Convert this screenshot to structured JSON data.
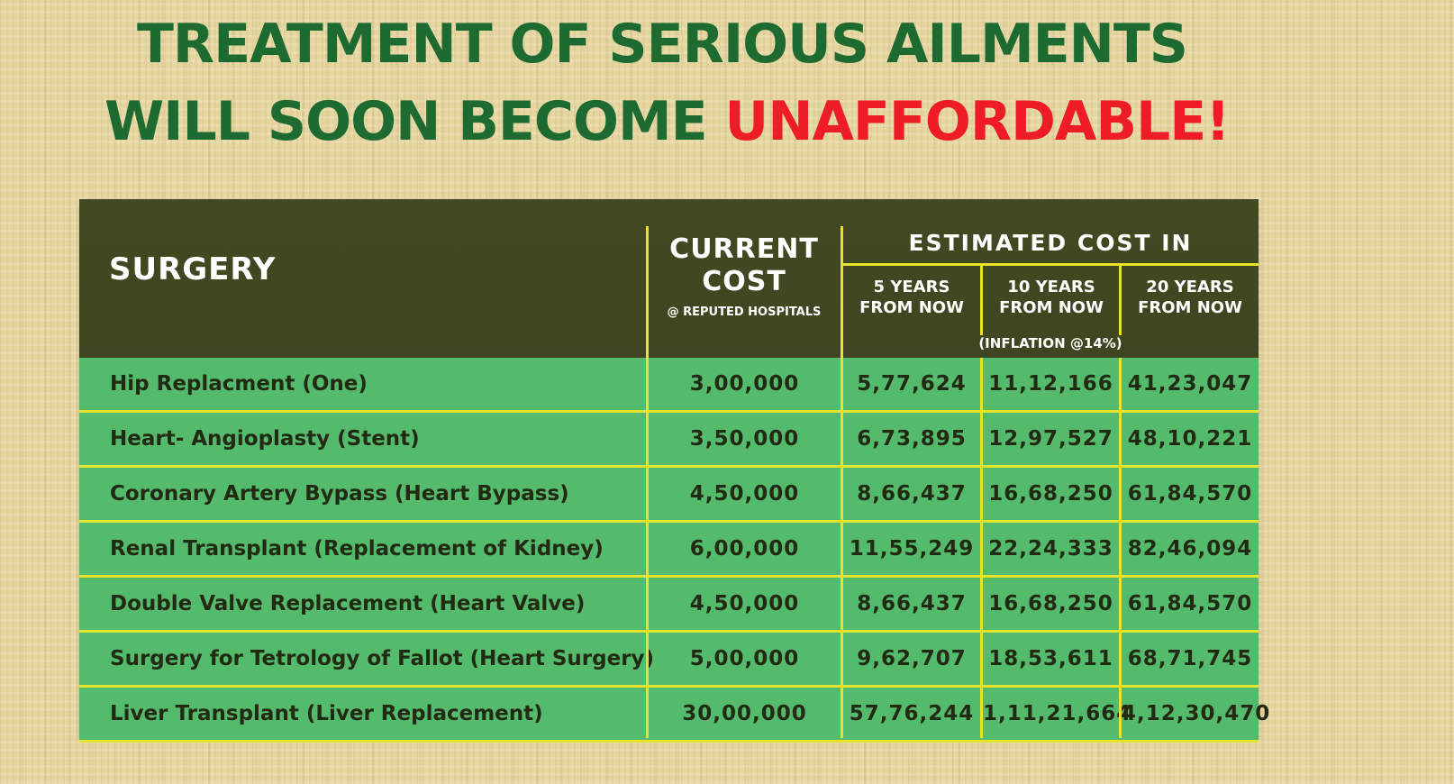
{
  "title": {
    "line1": "TREATMENT OF SERIOUS AILMENTS",
    "line2_prefix": "WILL SOON BECOME ",
    "line2_highlight": "UNAFFORDABLE!"
  },
  "colors": {
    "title_green": "#1e6b32",
    "highlight_red": "#ee1c24",
    "header_bg": "#404820",
    "row_green": "#54bb6d",
    "grid_yellow": "#e5e32a"
  },
  "table": {
    "headers": {
      "surgery": "SURGERY",
      "current_line1": "CURRENT",
      "current_line2": "COST",
      "current_sub": "@ REPUTED HOSPITALS",
      "estimated": "ESTIMATED COST IN",
      "y5_line1": "5 YEARS",
      "y5_line2": "FROM NOW",
      "y10_line1": "10 YEARS",
      "y10_line2": "FROM NOW",
      "y20_line1": "20 YEARS",
      "y20_line2": "FROM NOW",
      "inflation": "(INFLATION @14%)"
    },
    "rows": [
      {
        "surgery": "Hip Replacment (One)",
        "current": "3,00,000",
        "y5": "5,77,624",
        "y10": "11,12,166",
        "y20": "41,23,047"
      },
      {
        "surgery": "Heart- Angioplasty (Stent)",
        "current": "3,50,000",
        "y5": "6,73,895",
        "y10": "12,97,527",
        "y20": "48,10,221"
      },
      {
        "surgery": "Coronary Artery Bypass (Heart Bypass)",
        "current": "4,50,000",
        "y5": "8,66,437",
        "y10": "16,68,250",
        "y20": "61,84,570"
      },
      {
        "surgery": "Renal Transplant (Replacement of Kidney)",
        "current": "6,00,000",
        "y5": "11,55,249",
        "y10": "22,24,333",
        "y20": "82,46,094"
      },
      {
        "surgery": "Double Valve Replacement (Heart Valve)",
        "current": "4,50,000",
        "y5": "8,66,437",
        "y10": "16,68,250",
        "y20": "61,84,570"
      },
      {
        "surgery": "Surgery for Tetrology of Fallot (Heart Surgery)",
        "current": "5,00,000",
        "y5": "9,62,707",
        "y10": "18,53,611",
        "y20": "68,71,745"
      },
      {
        "surgery": "Liver Transplant (Liver Replacement)",
        "current": "30,00,000",
        "y5": "57,76,244",
        "y10": "1,11,21,664",
        "y20": "4,12,30,470"
      }
    ]
  }
}
